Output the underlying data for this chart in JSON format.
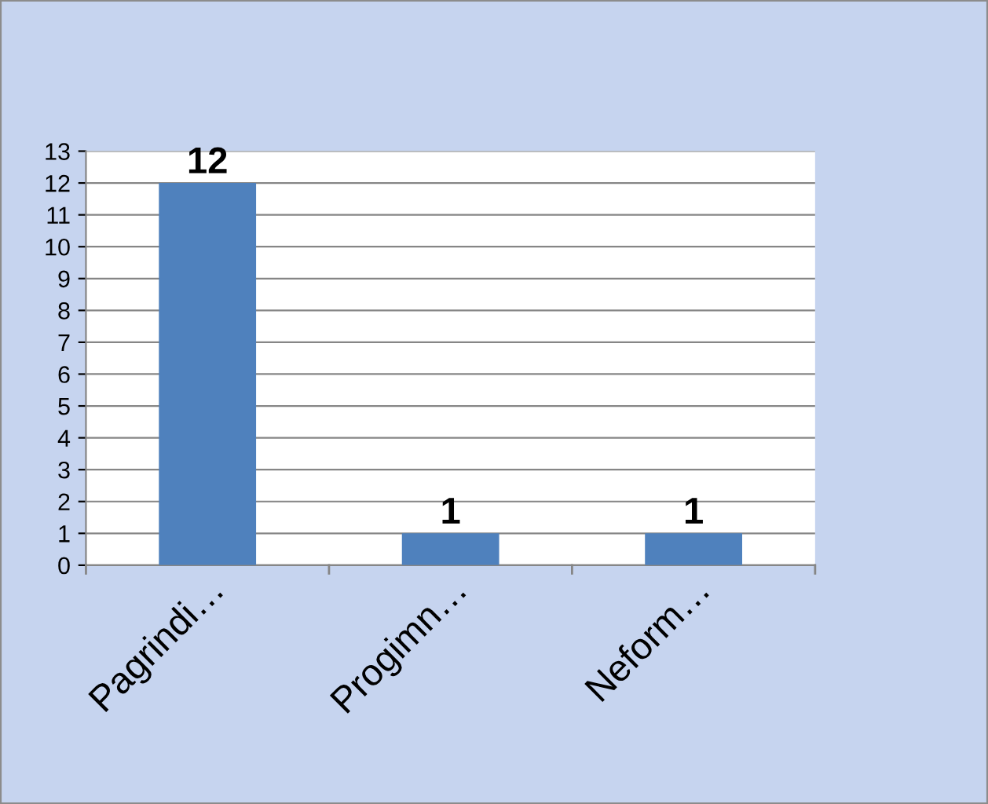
{
  "chart_data": {
    "type": "bar",
    "categories": [
      "Pagrindi…",
      "Progimn…",
      "Neform…"
    ],
    "values": [
      12,
      1,
      1
    ],
    "color": "#4f81bd",
    "ylim": [
      0,
      13
    ],
    "yticks": [
      0,
      1,
      2,
      3,
      4,
      5,
      6,
      7,
      8,
      9,
      10,
      11,
      12,
      13
    ],
    "grid": "y",
    "data_labels": true
  }
}
